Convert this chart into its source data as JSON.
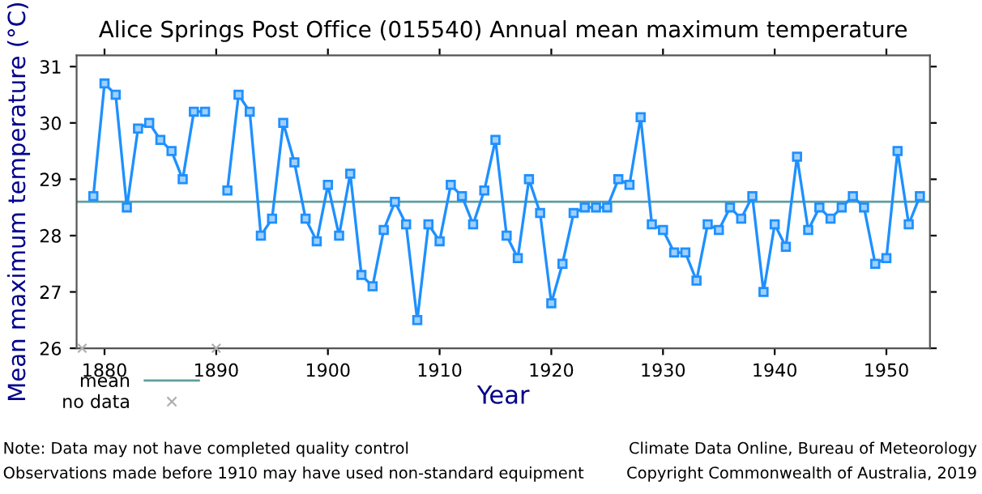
{
  "chart_data": {
    "type": "line",
    "title": "Alice Springs Post Office (015540) Annual mean maximum temperature",
    "xlabel": "Year",
    "ylabel": "Mean maximum temperature (°C)",
    "xlim": [
      1877.5,
      1953.9
    ],
    "xticks": [
      1880,
      1890,
      1900,
      1910,
      1920,
      1930,
      1940,
      1950
    ],
    "ylim": [
      26,
      31.2
    ],
    "yticks": [
      26,
      27,
      28,
      29,
      30,
      31
    ],
    "grid": false,
    "legend": "bottom left",
    "marker": "square",
    "line_style": "solid",
    "series": [
      {
        "color": "#1e90ff",
        "x": [
          1879,
          1880,
          1881,
          1882,
          1883,
          1884,
          1885,
          1886,
          1887,
          1888,
          1889,
          1890,
          1891,
          1892,
          1893,
          1894,
          1895,
          1896,
          1897,
          1898,
          1899,
          1900,
          1901,
          1902,
          1903,
          1904,
          1905,
          1906,
          1907,
          1908,
          1909,
          1910,
          1911,
          1912,
          1913,
          1914,
          1915,
          1916,
          1917,
          1918,
          1919,
          1920,
          1921,
          1922,
          1923,
          1924,
          1925,
          1926,
          1927,
          1928,
          1929,
          1930,
          1931,
          1932,
          1933,
          1934,
          1935,
          1936,
          1937,
          1938,
          1939,
          1940,
          1941,
          1942,
          1943,
          1944,
          1945,
          1946,
          1947,
          1948,
          1949,
          1950,
          1951,
          1952,
          1953
        ],
        "values": [
          28.7,
          30.7,
          30.5,
          28.5,
          29.9,
          30.0,
          29.7,
          29.5,
          29.0,
          30.2,
          30.2,
          null,
          28.8,
          30.5,
          30.2,
          28.0,
          28.3,
          30.0,
          29.3,
          28.3,
          27.9,
          28.9,
          28.0,
          29.1,
          27.3,
          27.1,
          28.1,
          28.6,
          28.2,
          26.5,
          28.2,
          27.9,
          28.9,
          28.7,
          28.2,
          28.8,
          29.7,
          28.0,
          27.6,
          29.0,
          28.4,
          26.8,
          27.5,
          28.4,
          28.5,
          28.5,
          28.5,
          29.0,
          28.9,
          30.1,
          28.2,
          28.1,
          27.7,
          27.7,
          27.2,
          28.2,
          28.1,
          28.5,
          28.3,
          28.7,
          27.0,
          28.2,
          27.8,
          29.4,
          28.1,
          28.5,
          28.3,
          28.5,
          28.7,
          28.5,
          27.5,
          27.6,
          29.5,
          28.2,
          28.7
        ]
      },
      {
        "type": "scatter",
        "name": "no data",
        "color": "#b0b0b0",
        "marker": "cross",
        "x": [
          1878,
          1890
        ],
        "values": [
          26,
          26
        ]
      }
    ],
    "ref_lines": [
      {
        "axis": "y",
        "value": 28.6,
        "label": "mean",
        "color": "#5f9ea0",
        "line_style": "solid"
      }
    ],
    "annotations": [
      "Note: Data may not have completed quality control",
      "Observations made before 1910 may have used non-standard equipment",
      "Climate Data Online, Bureau of Meteorology",
      "Copyright Commonwealth of Australia, 2019"
    ]
  }
}
